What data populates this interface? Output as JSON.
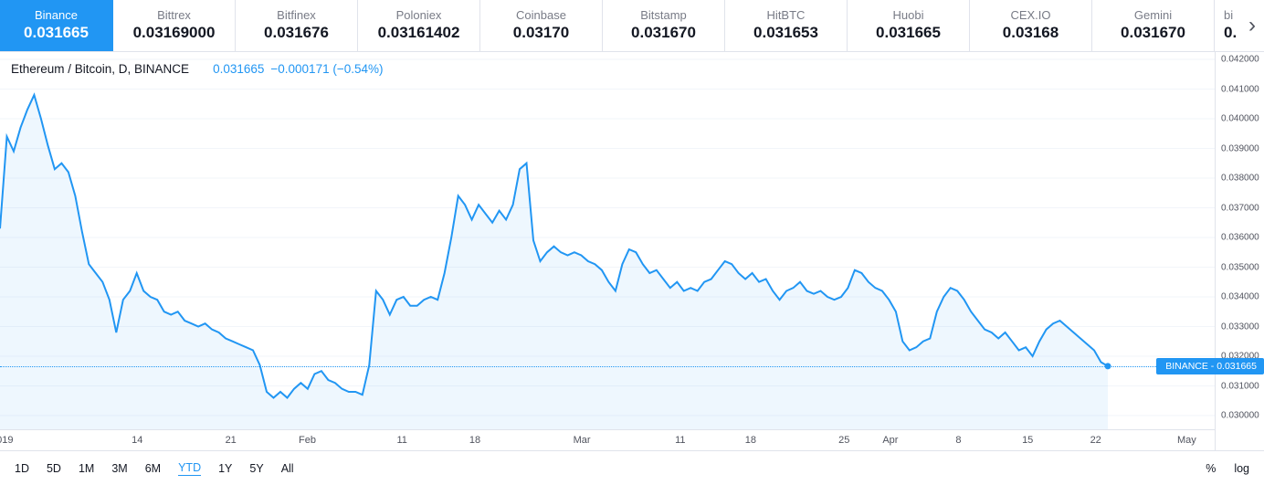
{
  "exchange_tabs": [
    {
      "name": "Binance",
      "price": "0.031665",
      "active": true
    },
    {
      "name": "Bittrex",
      "price": "0.03169000",
      "active": false
    },
    {
      "name": "Bitfinex",
      "price": "0.031676",
      "active": false
    },
    {
      "name": "Poloniex",
      "price": "0.03161402",
      "active": false
    },
    {
      "name": "Coinbase",
      "price": "0.03170",
      "active": false
    },
    {
      "name": "Bitstamp",
      "price": "0.031670",
      "active": false
    },
    {
      "name": "HitBTC",
      "price": "0.031653",
      "active": false
    },
    {
      "name": "Huobi",
      "price": "0.031665",
      "active": false
    },
    {
      "name": "CEX.IO",
      "price": "0.03168",
      "active": false
    },
    {
      "name": "Gemini",
      "price": "0.031670",
      "active": false
    },
    {
      "name": "bi",
      "price": "0.",
      "active": false,
      "partial": true
    }
  ],
  "tabs_next_icon": "›",
  "header": {
    "symbol": "Ethereum / Bitcoin, D, BINANCE",
    "price": "0.031665",
    "change": "−0.000171 (−0.54%)"
  },
  "price_label": {
    "text": "BINANCE - 0.031665"
  },
  "toolbar": {
    "ranges": [
      "1D",
      "5D",
      "1M",
      "3M",
      "6M",
      "YTD",
      "1Y",
      "5Y",
      "All"
    ],
    "active_range": "YTD",
    "percent_label": "%",
    "log_label": "log"
  },
  "chart_data": {
    "type": "area",
    "title": "Ethereum / Bitcoin, D, BINANCE",
    "series": [
      {
        "name": "BINANCE ETH/BTC",
        "exchange": "BINANCE"
      }
    ],
    "line_color": "#2196f3",
    "fill_color": "rgba(33,150,243,0.08)",
    "grid_color": "#f2f5fa",
    "legend_position": "top-left",
    "ylim": [
      0.029538,
      0.042246
    ],
    "y_ticks": [
      0.03,
      0.031,
      0.032,
      0.033,
      0.034,
      0.035,
      0.036,
      0.037,
      0.038,
      0.039,
      0.04,
      0.041,
      0.042
    ],
    "y_tick_decimals": 6,
    "x_ticks": [
      {
        "label": "019",
        "pos": 0.004
      },
      {
        "label": "14",
        "pos": 0.113
      },
      {
        "label": "21",
        "pos": 0.19
      },
      {
        "label": "Feb",
        "pos": 0.253
      },
      {
        "label": "11",
        "pos": 0.331
      },
      {
        "label": "18",
        "pos": 0.391
      },
      {
        "label": "Mar",
        "pos": 0.479
      },
      {
        "label": "11",
        "pos": 0.56
      },
      {
        "label": "18",
        "pos": 0.618
      },
      {
        "label": "25",
        "pos": 0.695
      },
      {
        "label": "Apr",
        "pos": 0.733
      },
      {
        "label": "8",
        "pos": 0.789
      },
      {
        "label": "15",
        "pos": 0.846
      },
      {
        "label": "22",
        "pos": 0.902
      },
      {
        "label": "May",
        "pos": 0.977
      }
    ],
    "x_end_frac": 0.912,
    "last_price": 0.031665,
    "values": [
      0.0363,
      0.0394,
      0.0389,
      0.0397,
      0.0403,
      0.0408,
      0.04,
      0.0391,
      0.0383,
      0.0385,
      0.0382,
      0.0374,
      0.0362,
      0.0351,
      0.0348,
      0.0345,
      0.0339,
      0.0328,
      0.0339,
      0.0342,
      0.0348,
      0.0342,
      0.034,
      0.0339,
      0.0335,
      0.0334,
      0.0335,
      0.0332,
      0.0331,
      0.033,
      0.0331,
      0.0329,
      0.0328,
      0.0326,
      0.0325,
      0.0324,
      0.0323,
      0.0322,
      0.0317,
      0.0308,
      0.0306,
      0.0308,
      0.0306,
      0.0309,
      0.0311,
      0.0309,
      0.0314,
      0.0315,
      0.0312,
      0.0311,
      0.0309,
      0.0308,
      0.0308,
      0.0307,
      0.0317,
      0.0342,
      0.0339,
      0.0334,
      0.0339,
      0.034,
      0.0337,
      0.0337,
      0.0339,
      0.034,
      0.0339,
      0.0348,
      0.036,
      0.0374,
      0.0371,
      0.0366,
      0.0371,
      0.0368,
      0.0365,
      0.0369,
      0.0366,
      0.0371,
      0.0383,
      0.0385,
      0.0359,
      0.0352,
      0.0355,
      0.0357,
      0.0355,
      0.0354,
      0.0355,
      0.0354,
      0.0352,
      0.0351,
      0.0349,
      0.0345,
      0.0342,
      0.0351,
      0.0356,
      0.0355,
      0.0351,
      0.0348,
      0.0349,
      0.0346,
      0.0343,
      0.0345,
      0.0342,
      0.0343,
      0.0342,
      0.0345,
      0.0346,
      0.0349,
      0.0352,
      0.0351,
      0.0348,
      0.0346,
      0.0348,
      0.0345,
      0.0346,
      0.0342,
      0.0339,
      0.0342,
      0.0343,
      0.0345,
      0.0342,
      0.0341,
      0.0342,
      0.034,
      0.0339,
      0.034,
      0.0343,
      0.0349,
      0.0348,
      0.0345,
      0.0343,
      0.0342,
      0.0339,
      0.0335,
      0.0325,
      0.0322,
      0.0323,
      0.0325,
      0.0326,
      0.0335,
      0.034,
      0.0343,
      0.0342,
      0.0339,
      0.0335,
      0.0332,
      0.0329,
      0.0328,
      0.0326,
      0.0328,
      0.0325,
      0.0322,
      0.0323,
      0.032,
      0.0325,
      0.0329,
      0.0331,
      0.0332,
      0.033,
      0.0328,
      0.0326,
      0.0324,
      0.0322,
      0.0318,
      0.031665
    ]
  }
}
